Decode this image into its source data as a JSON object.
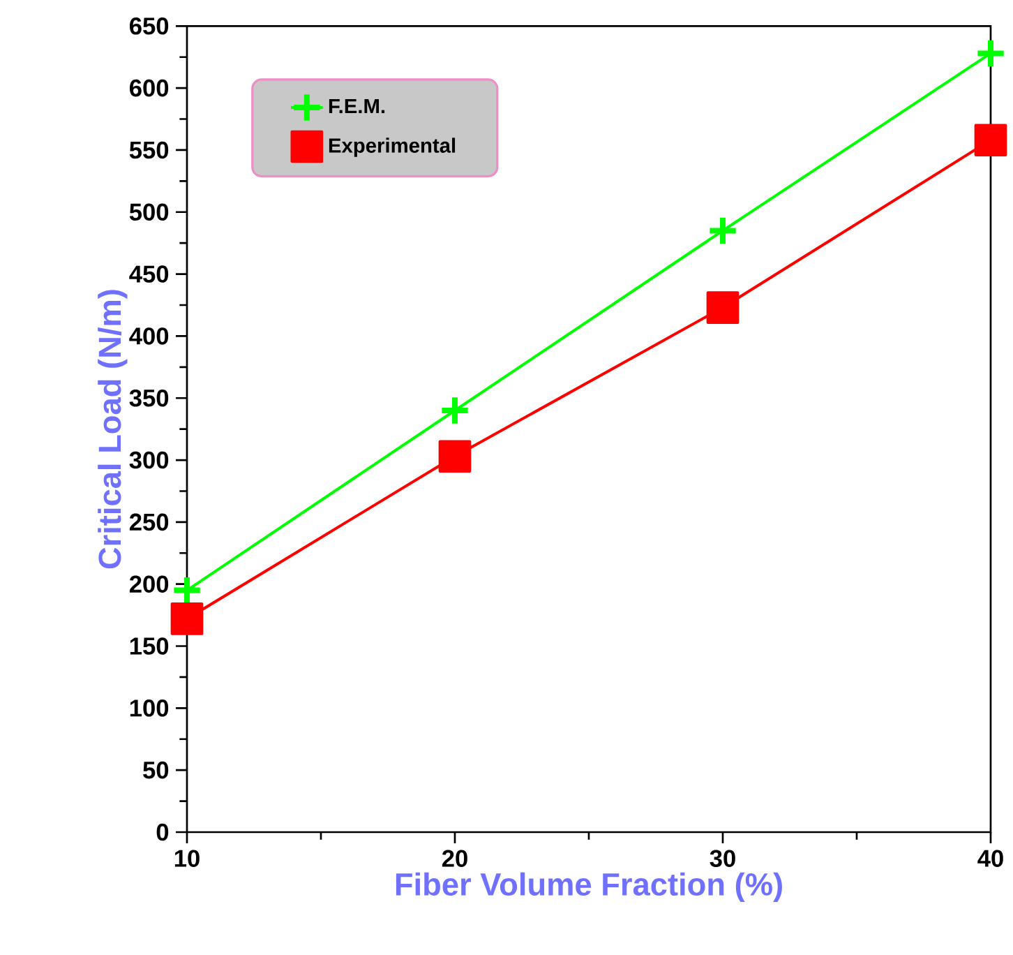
{
  "chart_data": {
    "type": "line",
    "xlabel": "Fiber Volume Fraction (%)",
    "ylabel": "Critical Load (N/m)",
    "x": [
      10,
      20,
      30,
      40
    ],
    "series": [
      {
        "name": "F.E.M.",
        "color": "#00ff00",
        "marker": "cross",
        "values": [
          195,
          340,
          485,
          628
        ]
      },
      {
        "name": "Experimental",
        "color": "#ff0000",
        "marker": "square",
        "values": [
          172,
          303,
          423,
          558
        ]
      }
    ],
    "xlim": [
      10,
      40
    ],
    "xticks": [
      10,
      20,
      30,
      40
    ],
    "ylim": [
      0,
      650
    ],
    "yticks": [
      0,
      50,
      100,
      150,
      200,
      250,
      300,
      350,
      400,
      450,
      500,
      550,
      600,
      650
    ],
    "grid": false,
    "legend": "top left"
  }
}
